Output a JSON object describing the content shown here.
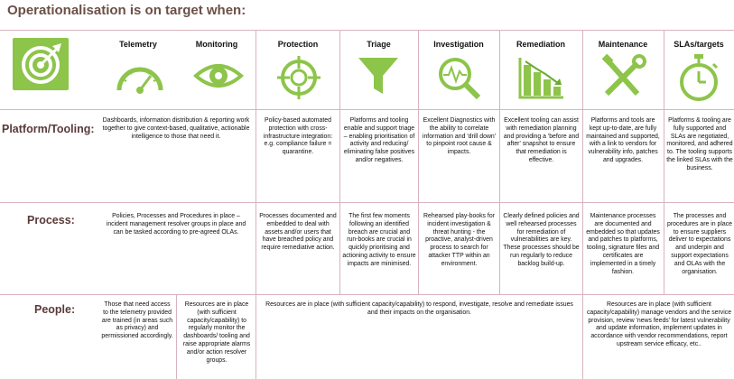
{
  "title": "Operationalisation is on target when:",
  "colors": {
    "green": "#8dc44a",
    "dark_green": "#6aab2e",
    "divider": "#d9b3bd",
    "title": "#6b5048"
  },
  "headers": [
    {
      "label": "Telemetry",
      "icon": "gauge-icon"
    },
    {
      "label": "Monitoring",
      "icon": "eye-icon"
    },
    {
      "label": "Protection",
      "icon": "crosshair-icon"
    },
    {
      "label": "Triage",
      "icon": "funnel-icon"
    },
    {
      "label": "Investigation",
      "icon": "magnifier-pulse-icon"
    },
    {
      "label": "Remediation",
      "icon": "declining-chart-icon"
    },
    {
      "label": "Maintenance",
      "icon": "wrench-screwdriver-icon"
    },
    {
      "label": "SLAs/targets",
      "icon": "stopwatch-icon"
    }
  ],
  "target_icon": "target-arrow-icon",
  "rows": {
    "platform": {
      "label": "Platform/Tooling:",
      "telemetry_monitoring": "Dashboards, information distribution & reporting work together to give context-based, qualitative, actionable intelligence to those that need it.",
      "protection": "Policy-based automated protection with cross-infrastructure integration: e.g. compliance failure = quarantine.",
      "triage": "Platforms and tooling enable and support triage – enabling prioritisation of activity and reducing/ eliminating false positives and/or negatives.",
      "investigation": "Excellent Diagnostics with the ability to correlate information and 'drill down' to pinpoint root cause & impacts.",
      "remediation": "Excellent tooling can assist with remediation planning and providing a 'before and after' snapshot to ensure that remediation is effective.",
      "maintenance": "Platforms and tools are kept up-to-date, are fully maintained and supported, with a link to vendors for vulnerability info, patches and upgrades.",
      "slas": "Platforms & tooling are fully supported and SLAs are negotiated, monitored, and adhered to. The tooling supports the linked SLAs with the business."
    },
    "process": {
      "label": "Process:",
      "telemetry_monitoring": "Policies, Processes and Procedures in place – incident management resolver groups in place and can be tasked according to pre-agreed OLAs.",
      "protection": "Processes documented and embedded to deal with assets and/or users that have breached policy and require remediative action.",
      "triage": "The first few moments following an identified breach are crucial and run-books are crucial in quickly prioritising and actioning activity to ensure impacts are minimised.",
      "investigation": "Rehearsed play-books for incident investigation & threat hunting - the proactive, analyst-driven process to search for attacker TTP within an environment.",
      "remediation": "Clearly defined policies and well rehearsed processes for remediation of vulnerabilities are key. These processes should be run regularly to reduce backlog build-up.",
      "maintenance": "Maintenance processes are documented and embedded so that updates and patches to platforms, tooling, signature files and certificates are implemented in a timely fashion.",
      "slas": "The processes and procedures are in place to ensure suppliers deliver to expectations and underpin and support expectations and OLAs with the organisation."
    },
    "people": {
      "label": "People:",
      "telemetry": "Those that need access to the telemetry provided are trained (in areas such as privacy) and permissioned accordingly.",
      "monitoring": "Resources are in place (with sufficient capacity/capability) to regularly monitor the dashboards/ tooling and raise appropriate alarms and/or action resolver groups.",
      "middle": "Resources are in place (with sufficient capacity/capability) to respond, investigate, resolve and remediate issues and their impacts on the organisation.",
      "maint_slas": "Resources are in place (with sufficient capacity/capability) manage vendors and the service provision, review 'news feeds' for latest vulnerability and update information, implement updates in accordance with vendor recommendations, report upstream service efficacy, etc.."
    }
  }
}
